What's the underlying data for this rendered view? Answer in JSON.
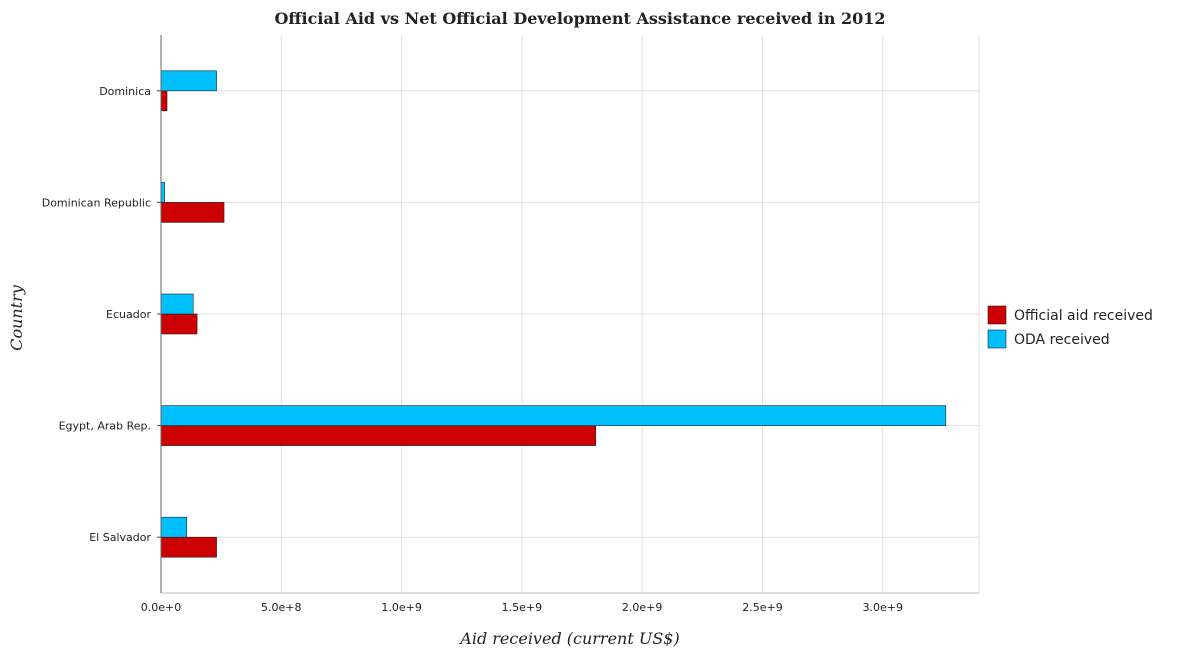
{
  "chart_data": {
    "type": "bar",
    "orientation": "horizontal",
    "title": "Official Aid vs Net Official Development Assistance received in 2012",
    "xlabel": "Aid received (current US$)",
    "ylabel": "Country",
    "categories": [
      "Dominica",
      "Dominican Republic",
      "Ecuador",
      "Egypt, Arab Rep.",
      "El Salvador"
    ],
    "series": [
      {
        "name": "Official aid received",
        "color": "#cc0000",
        "values": [
          25000000,
          262000000,
          150000000,
          1807000000,
          231000000
        ]
      },
      {
        "name": "ODA received",
        "color": "#00bfff",
        "values": [
          231000000,
          15000000,
          134000000,
          3262000000,
          107000000
        ]
      }
    ],
    "xlim": [
      0,
      3400000000
    ],
    "xticks": [
      0,
      500000000,
      1000000000,
      1500000000,
      2000000000,
      2500000000,
      3000000000
    ],
    "xtick_labels": [
      "0.0e+0",
      "5.0e+8",
      "1.0e+9",
      "1.5e+9",
      "2.0e+9",
      "2.5e+9",
      "3.0e+9"
    ],
    "grid": true,
    "legend_position": "right"
  }
}
